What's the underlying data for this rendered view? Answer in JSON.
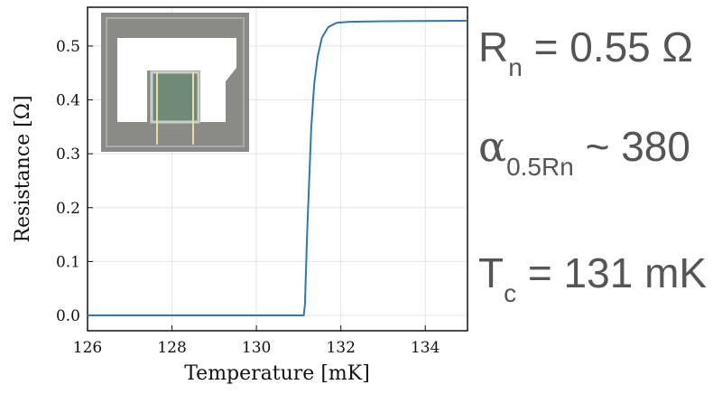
{
  "chart_data": {
    "type": "line",
    "xlabel": "Temperature [mK]",
    "ylabel": "Resistance [Ω]",
    "xlim": [
      126,
      135
    ],
    "ylim": [
      -0.0285,
      0.572
    ],
    "xticks": [
      126,
      128,
      130,
      132,
      134
    ],
    "yticks": [
      {
        "value": 0,
        "label": "0.0"
      },
      0.1,
      0.2,
      0.3,
      0.4,
      0.5
    ],
    "grid": true,
    "series": [
      {
        "color": "#2f78b4",
        "x": [
          126,
          131.12,
          131.15,
          131.2,
          131.25,
          131.3,
          131.37,
          131.45,
          131.55,
          131.7,
          131.9,
          132.2,
          133,
          135
        ],
        "values": [
          0,
          0,
          0.02,
          0.15,
          0.25,
          0.35,
          0.43,
          0.48,
          0.515,
          0.535,
          0.543,
          0.545,
          0.546,
          0.547
        ]
      }
    ],
    "annotations": [
      {
        "main": "R",
        "sub": "n",
        "rest": " = 0.55 Ω"
      },
      {
        "main": "α",
        "sub": "0.5Rn",
        "rest": " ~ 380"
      },
      {
        "main": "T",
        "sub": "c",
        "rest": " = 131 mK"
      }
    ]
  }
}
